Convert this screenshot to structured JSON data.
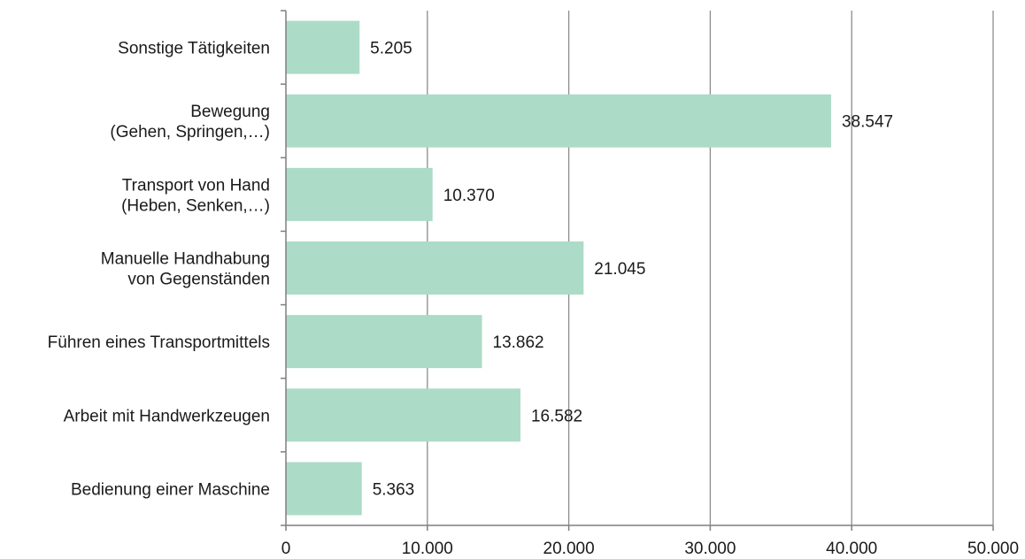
{
  "chart_data": {
    "type": "bar",
    "orientation": "horizontal",
    "title": "",
    "xlabel": "",
    "ylabel": "",
    "categories": [
      [
        "Sonstige Tätigkeiten"
      ],
      [
        "Bewegung",
        "(Gehen, Springen,…)"
      ],
      [
        "Transport von Hand",
        "(Heben, Senken,…)"
      ],
      [
        "Manuelle Handhabung",
        "von Gegenständen"
      ],
      [
        "Führen eines Transportmittels"
      ],
      [
        "Arbeit mit Handwerkzeugen"
      ],
      [
        "Bedienung einer Maschine"
      ]
    ],
    "values": [
      5205,
      38547,
      10370,
      21045,
      13862,
      16582,
      5363
    ],
    "value_labels": [
      "5.205",
      "38.547",
      "10.370",
      "21.045",
      "13.862",
      "16.582",
      "5.363"
    ],
    "xlim": [
      0,
      50000
    ],
    "xticks": [
      0,
      10000,
      20000,
      30000,
      40000,
      50000
    ],
    "xtick_labels": [
      "0",
      "10.000",
      "20.000",
      "30.000",
      "40.000",
      "50.000"
    ],
    "grid": true,
    "legend": "none",
    "bar_color": "#acdbc7",
    "grid_color": "#8c8c8c",
    "axis_color": "#7f7f7f"
  }
}
